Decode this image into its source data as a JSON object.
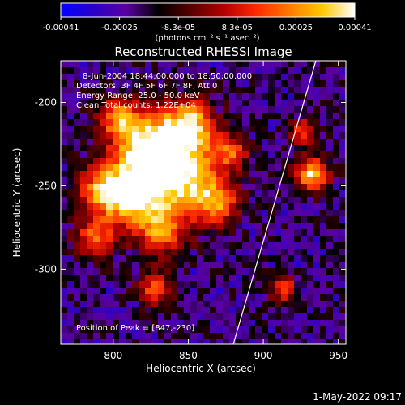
{
  "colorbar": {
    "tick_labels": [
      "-0.00041",
      "-0.00025",
      "-8.3e-05",
      "8.3e-05",
      "0.00025",
      "0.00041"
    ],
    "unit_label": "(photons cm⁻² s⁻¹ asec⁻²)",
    "colormap": [
      "#0000ff",
      "#2a00c8",
      "#5a00a0",
      "#000000",
      "#5a0000",
      "#b40000",
      "#ff2a00",
      "#ff7a00",
      "#ffc800",
      "#ffffff"
    ]
  },
  "image": {
    "title": "Reconstructed RHESSI Image",
    "info_lines": [
      "8-Jun-2004 18:44:00.000 to 18:50:00.000",
      "Detectors: 3F 4F 5F 6F 7F 8F, Att 0",
      "Energy Range: 25.0 - 50.0 keV",
      "Clean     Total counts: 1.22E+04"
    ],
    "peak_text": "Position of Peak = [847,-230]",
    "x_axis": {
      "label": "Heliocentric X (arcsec)",
      "range": [
        765,
        955
      ],
      "ticks": [
        800,
        850,
        900,
        950
      ]
    },
    "y_axis": {
      "label": "Heliocentric Y (arcsec)",
      "range": [
        -345,
        -175
      ],
      "ticks": [
        -200,
        -250,
        -300
      ]
    },
    "limb_line": {
      "start": [
        880,
        -345
      ],
      "end": [
        935,
        -175
      ]
    },
    "line_color": "#ffffff"
  },
  "footer": {
    "date_text": "1-May-2022 09:17"
  }
}
